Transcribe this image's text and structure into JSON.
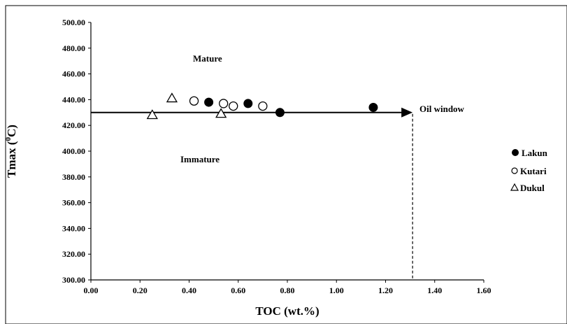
{
  "chart_data": {
    "type": "scatter",
    "title": "",
    "xlabel": "TOC (wt.%)",
    "ylabel_main": "Tmax (",
    "ylabel_sup": "0",
    "ylabel_end": "C)",
    "xlim": [
      0,
      1.6
    ],
    "ylim": [
      300,
      500
    ],
    "x_ticks": [
      "0.00",
      "0.20",
      "0.40",
      "0.60",
      "0.80",
      "1.00",
      "1.20",
      "1.40",
      "1.60"
    ],
    "y_ticks": [
      "300.00",
      "320.00",
      "340.00",
      "360.00",
      "380.00",
      "400.00",
      "420.00",
      "440.00",
      "460.00",
      "480.00",
      "500.00"
    ],
    "grid": false,
    "legend_position": "right",
    "series": [
      {
        "name": "Lakun",
        "marker": "filled-circle",
        "color": "#000000",
        "points": [
          {
            "x": 0.48,
            "y": 438
          },
          {
            "x": 0.64,
            "y": 437
          },
          {
            "x": 0.77,
            "y": 430
          },
          {
            "x": 1.15,
            "y": 434
          }
        ]
      },
      {
        "name": "Kutari",
        "marker": "open-circle",
        "color": "#000000",
        "points": [
          {
            "x": 0.42,
            "y": 439
          },
          {
            "x": 0.54,
            "y": 437
          },
          {
            "x": 0.58,
            "y": 435
          },
          {
            "x": 0.7,
            "y": 435
          }
        ]
      },
      {
        "name": "Dukul",
        "marker": "open-triangle",
        "color": "#000000",
        "points": [
          {
            "x": 0.25,
            "y": 428
          },
          {
            "x": 0.33,
            "y": 441
          },
          {
            "x": 0.53,
            "y": 429
          }
        ]
      }
    ],
    "annotations": {
      "mature": "Mature",
      "immature": "Immature",
      "oil_window": "Oil window"
    },
    "oil_window_line": {
      "y": 430,
      "x_start": 0,
      "x_end": 1.31
    },
    "toc_cutoff_line": {
      "x": 1.31
    }
  }
}
